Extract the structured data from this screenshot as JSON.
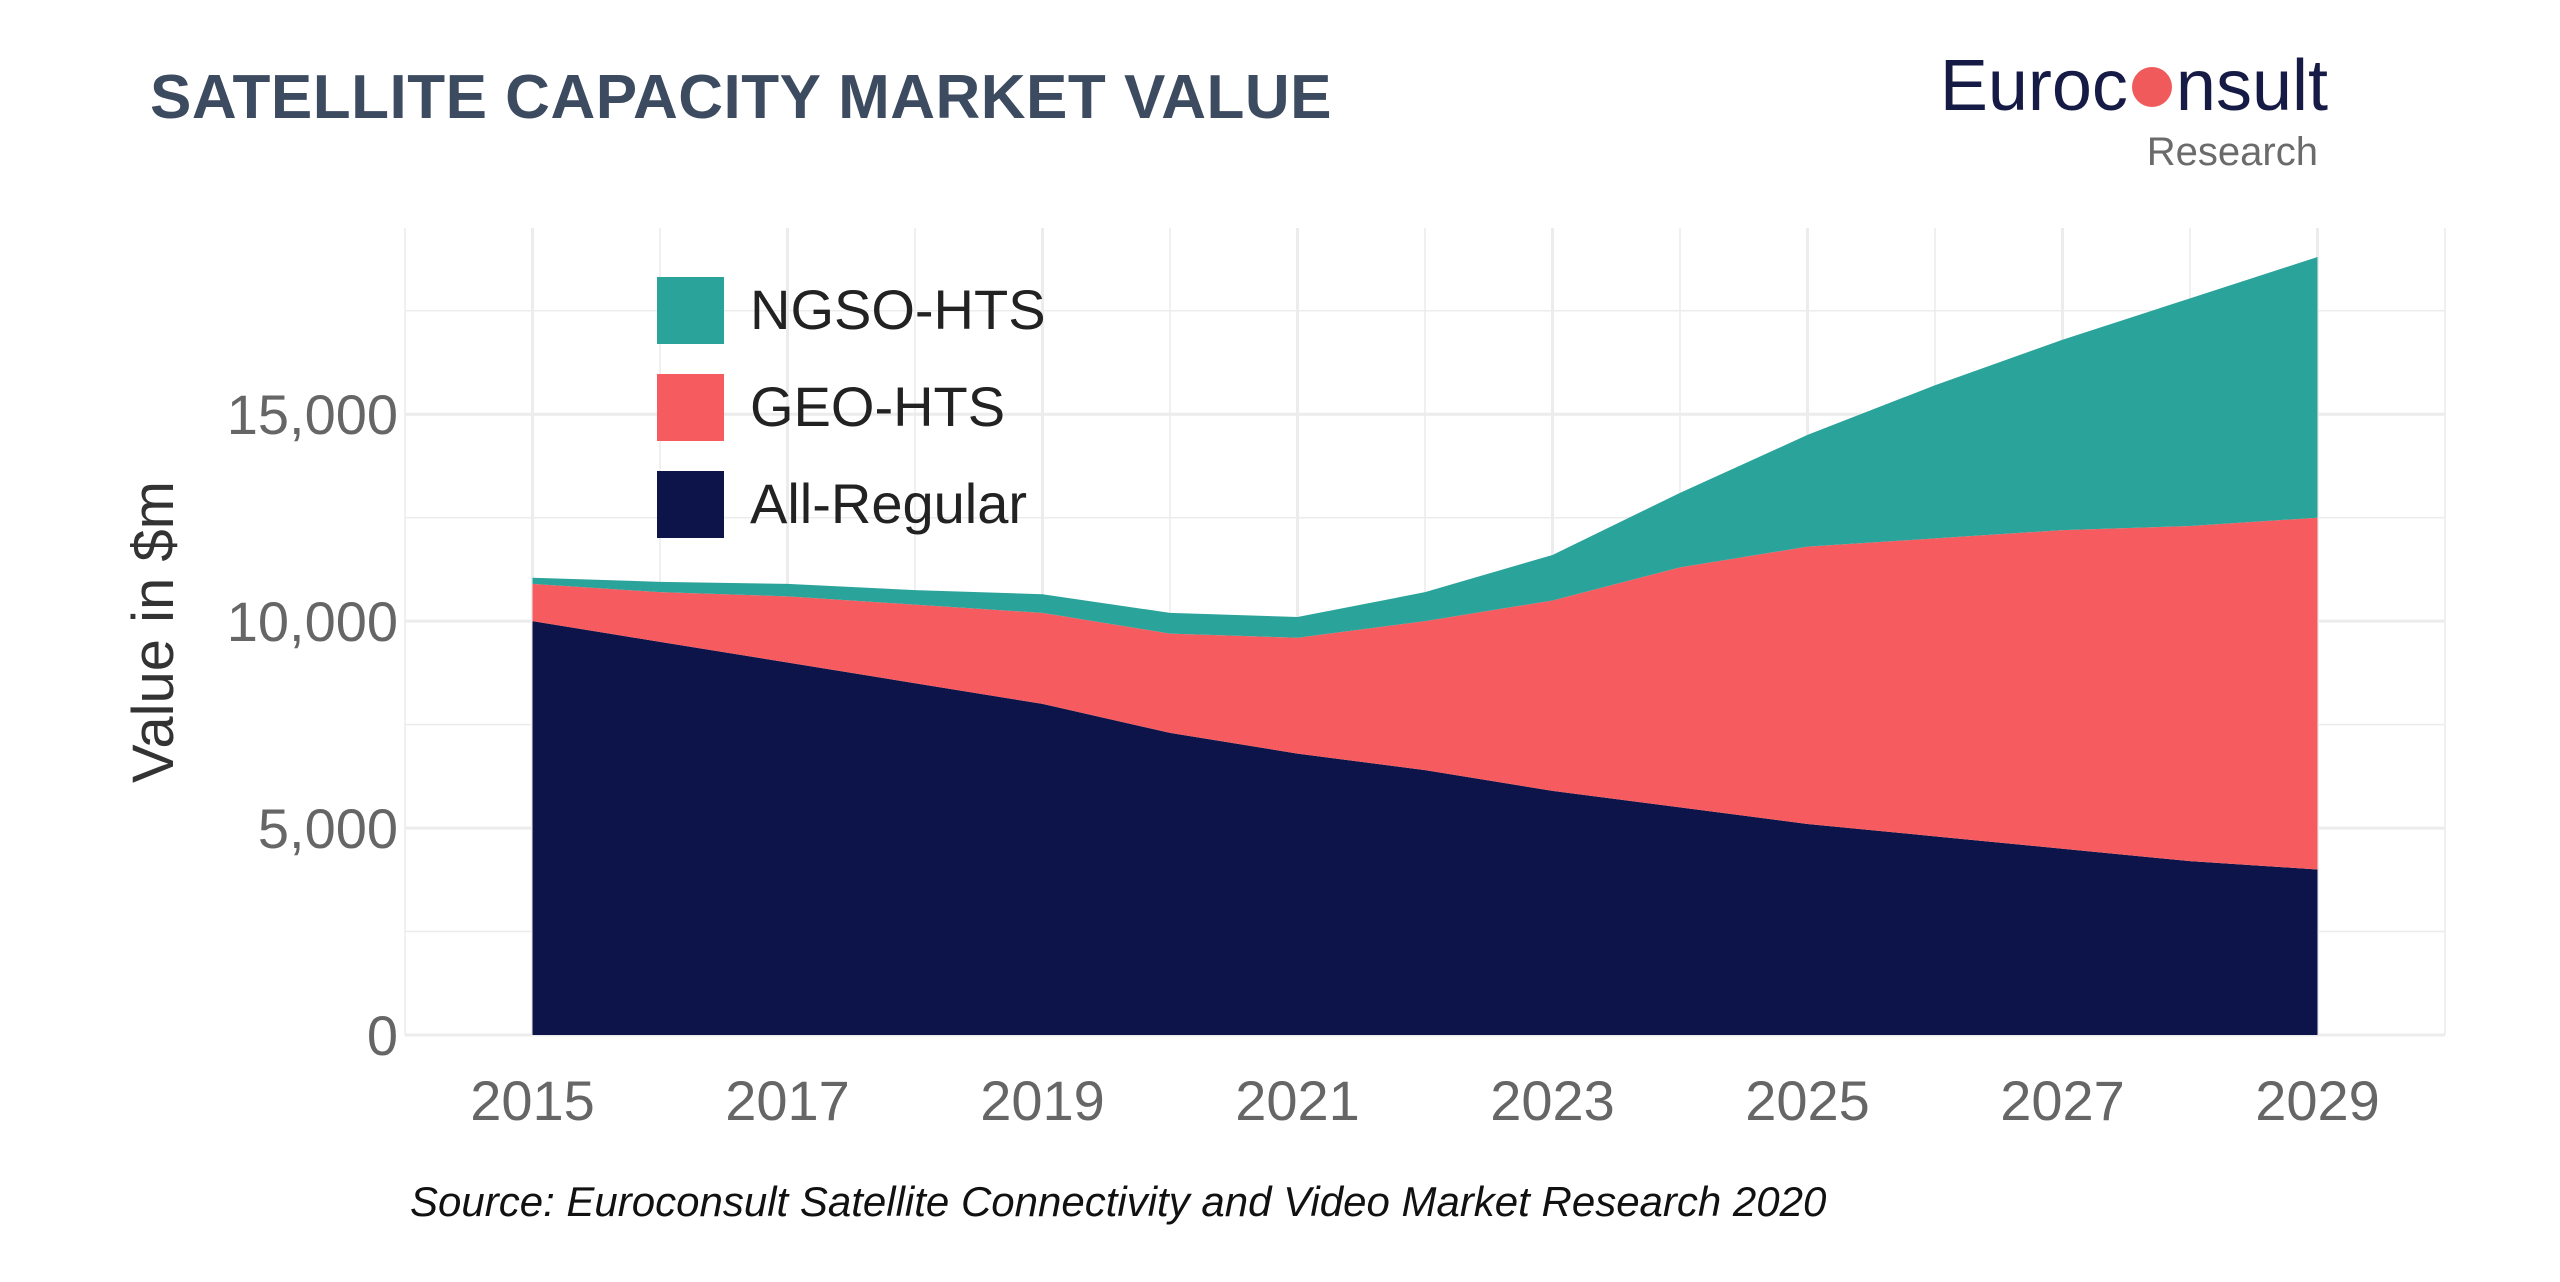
{
  "title": "SATELLITE CAPACITY MARKET VALUE",
  "logo": {
    "word_part1": "Euroc",
    "word_part2": "nsult",
    "sub": "Research"
  },
  "source": "Source: Euroconsult Satellite Connectivity and Video Market Research 2020",
  "colors": {
    "NGSO-HTS": "#2aa39a",
    "GEO-HTS": "#f65c5f",
    "All-Regular": "#0c1449",
    "grid": "#ececec",
    "tick": "#666666"
  },
  "chart_data": {
    "type": "area",
    "stacked": true,
    "title": "SATELLITE CAPACITY MARKET VALUE",
    "xlabel": "",
    "ylabel": "Value in $m",
    "xlim": [
      2014,
      2030
    ],
    "ylim": [
      0,
      19500
    ],
    "x_ticks": [
      2015,
      2017,
      2019,
      2021,
      2023,
      2025,
      2027,
      2029
    ],
    "y_ticks": [
      0,
      5000,
      10000,
      15000
    ],
    "y_tick_labels": [
      "0",
      "5,000",
      "10,000",
      "15,000"
    ],
    "grid": true,
    "legend_position": "top-left",
    "x": [
      2015,
      2016,
      2017,
      2018,
      2019,
      2020,
      2021,
      2022,
      2023,
      2024,
      2025,
      2026,
      2027,
      2028,
      2029
    ],
    "series": [
      {
        "name": "All-Regular",
        "values": [
          10000,
          9500,
          9000,
          8500,
          8000,
          7300,
          6800,
          6400,
          5900,
          5500,
          5100,
          4800,
          4500,
          4200,
          4000
        ]
      },
      {
        "name": "GEO-HTS",
        "values": [
          900,
          1200,
          1600,
          1900,
          2200,
          2400,
          2800,
          3600,
          4600,
          5800,
          6700,
          7200,
          7700,
          8100,
          8500
        ]
      },
      {
        "name": "NGSO-HTS",
        "values": [
          150,
          250,
          300,
          350,
          450,
          500,
          500,
          700,
          1100,
          1800,
          2700,
          3700,
          4600,
          5500,
          6300
        ]
      }
    ],
    "legend": [
      "NGSO-HTS",
      "GEO-HTS",
      "All-Regular"
    ]
  }
}
